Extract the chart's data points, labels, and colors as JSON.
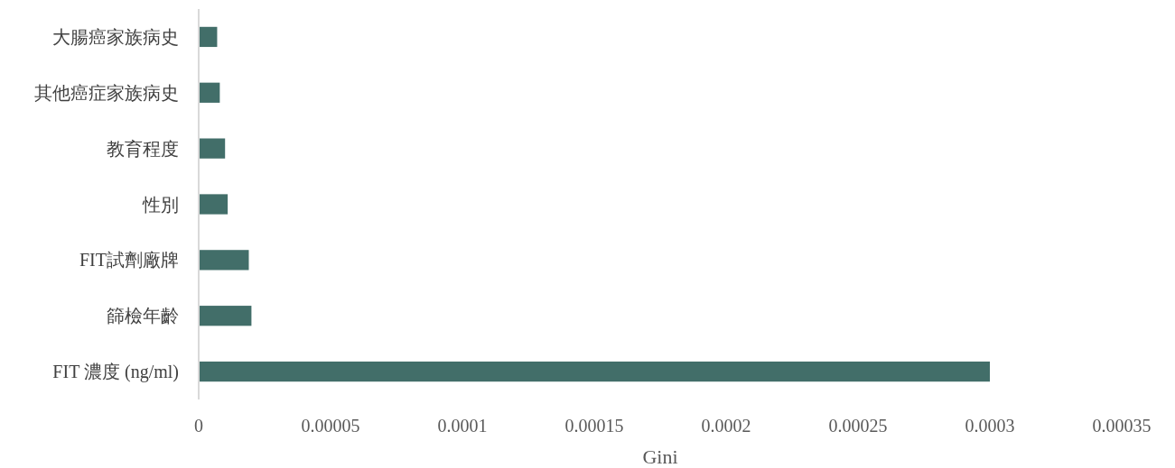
{
  "chart_data": {
    "type": "bar",
    "orientation": "horizontal",
    "xlabel": "Gini",
    "categories": [
      "大腸癌家族病史",
      "其他癌症家族病史",
      "教育程度",
      "性別",
      "FIT試劑廠牌",
      "篩檢年齡",
      "FIT 濃度 (ng/ml)"
    ],
    "values": [
      7e-06,
      8e-06,
      1e-05,
      1.1e-05,
      1.9e-05,
      2e-05,
      0.0003
    ],
    "color": "#426e69",
    "xlim": [
      0,
      0.00035
    ],
    "xticks": [
      0,
      {
        "value": 5e-05,
        "label": "0.00005"
      },
      0.0001,
      0.00015,
      0.0002,
      0.00025,
      0.0003,
      0.00035
    ],
    "grid": false
  }
}
